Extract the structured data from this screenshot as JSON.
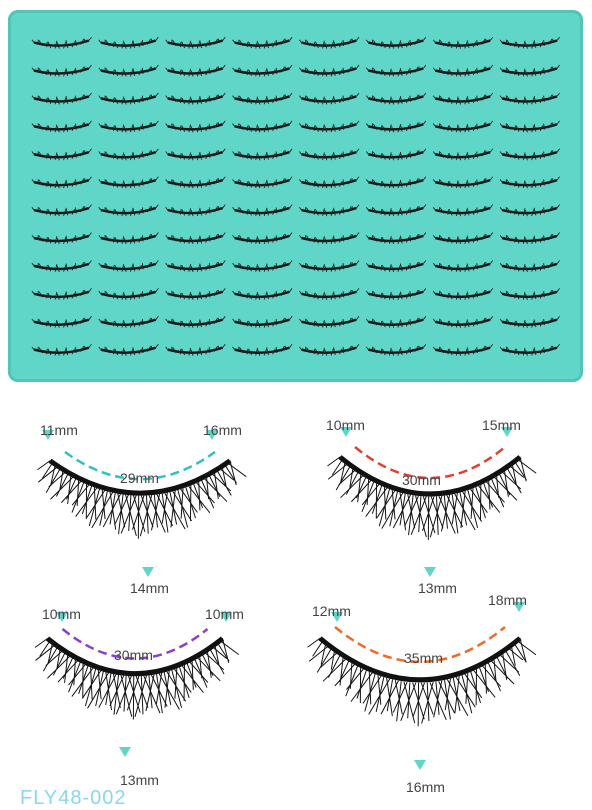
{
  "tray": {
    "rows": 12,
    "columns": 8,
    "color": "#5fd6c8"
  },
  "lashes": [
    {
      "id": "1",
      "left": "11mm",
      "right": "16mm",
      "length": "29mm",
      "height": "14mm",
      "dash": "#2ec2bd"
    },
    {
      "id": "2",
      "left": "10mm",
      "right": "15mm",
      "length": "30mm",
      "height": "13mm",
      "dash": "#e0402f"
    },
    {
      "id": "3",
      "left": "10mm",
      "right": "10mm",
      "length": "30mm",
      "height": "13mm",
      "dash": "#8b3fcf"
    },
    {
      "id": "4",
      "left": "12mm",
      "right": "18mm",
      "length": "35mm",
      "height": "16mm",
      "dash": "#f06a25"
    }
  ],
  "marker_color": "#5fd6c8",
  "product_code": "FLY48-002"
}
